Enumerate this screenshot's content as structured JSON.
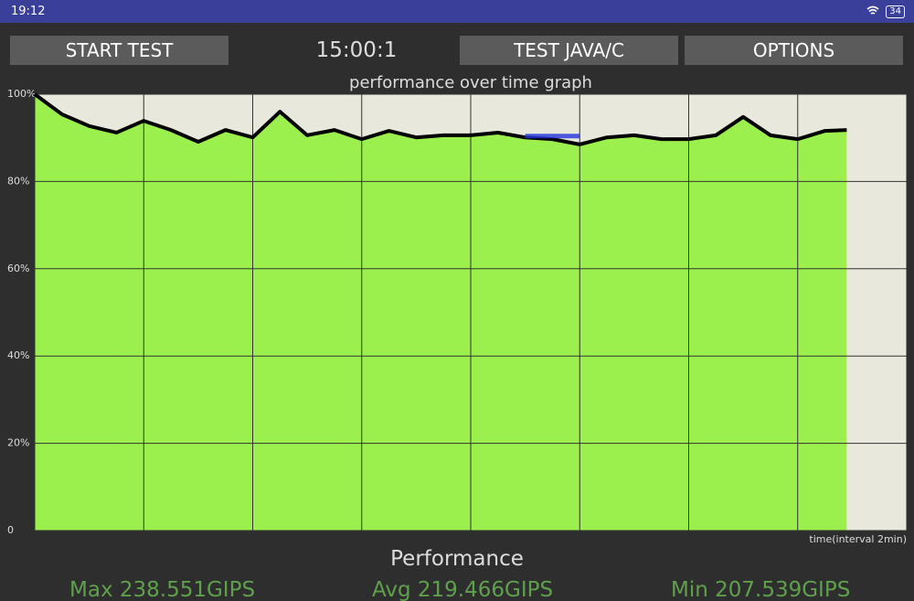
{
  "status_bar": {
    "time": "19:12",
    "battery": "34"
  },
  "toolbar": {
    "start_button": "START TEST",
    "timer": "15:00:1",
    "mode_button": "TEST JAVA/C",
    "options_button": "OPTIONS"
  },
  "chart_data": {
    "type": "line",
    "title": "performance over time graph",
    "x_label": "time(interval 2min)",
    "x": [
      0,
      0.5,
      1,
      1.5,
      2,
      2.5,
      3,
      3.5,
      4,
      4.5,
      5,
      5.5,
      6,
      6.5,
      7,
      7.5,
      8,
      8.5,
      9,
      9.5,
      10,
      10.5,
      11,
      11.5,
      12,
      12.5,
      13,
      13.5,
      14,
      14.5,
      14.9
    ],
    "series": [
      {
        "color": "#000000",
        "values": [
          100,
          95.4,
          92.7,
          91.2,
          93.9,
          91.8,
          89.1,
          91.8,
          90.1,
          96,
          90.6,
          91.8,
          89.7,
          91.6,
          90.1,
          90.6,
          90.6,
          91.2,
          90.1,
          89.7,
          88.5,
          90.1,
          90.6,
          89.7,
          89.7,
          90.6,
          94.8,
          90.6,
          89.7,
          91.6,
          91.8
        ]
      }
    ],
    "band_color": "#2233dd",
    "band_x": [
      9,
      10
    ],
    "band_values": [
      90.4,
      90.4
    ],
    "xlim": [
      0,
      16
    ],
    "xticks": [
      0,
      2,
      4,
      6,
      8,
      10,
      12,
      14,
      16
    ],
    "ylim": [
      0,
      100
    ],
    "yticks": [
      0,
      {
        "value": 20,
        "label": "20%"
      },
      {
        "value": 40,
        "label": "40%"
      },
      {
        "value": 60,
        "label": "60%"
      },
      {
        "value": 80,
        "label": "80%"
      },
      {
        "value": 100,
        "label": "100%"
      }
    ],
    "grid": true
  },
  "performance": {
    "title": "Performance",
    "max": "Max 238.551GIPS",
    "avg": "Avg 219.466GIPS",
    "min": "Min 207.539GIPS"
  }
}
